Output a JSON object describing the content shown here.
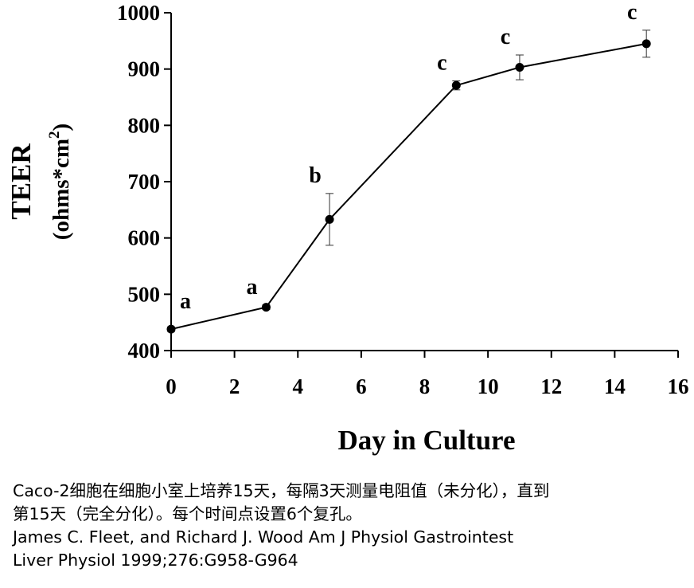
{
  "chart_data": {
    "type": "line",
    "ylabel": "TEER",
    "ylabel_unit_prefix": "(ohms*cm",
    "ylabel_unit_sup": "2",
    "ylabel_unit_suffix": ")",
    "xlabel": "Day in Culture",
    "xlim": [
      0,
      16
    ],
    "ylim": [
      400,
      1000
    ],
    "x_ticks": [
      "0",
      "2",
      "4",
      "6",
      "8",
      "10",
      "12",
      "14",
      "16"
    ],
    "y_ticks": [
      "400",
      "500",
      "600",
      "700",
      "800",
      "900",
      "1000"
    ],
    "grid": false,
    "legend": "none",
    "series": [
      {
        "x": [
          0,
          3,
          5,
          9,
          11,
          15
        ],
        "y": [
          438,
          477,
          633,
          871,
          903,
          945
        ],
        "error": [
          4,
          4,
          46,
          8,
          22,
          24
        ],
        "labels": [
          "a",
          "a",
          "b",
          "c",
          "c",
          "c"
        ]
      }
    ]
  },
  "caption": {
    "line1": "Caco-2细胞在细胞小室上培养15天，每隔3天测量电阻值（未分化），直到",
    "line2": "第15天（完全分化）。每个时间点设置6个复孔。",
    "line3": "James C. Fleet, and Richard J. Wood Am J Physiol Gastrointest",
    "line4": "Liver Physiol 1999;276:G958-G964"
  }
}
